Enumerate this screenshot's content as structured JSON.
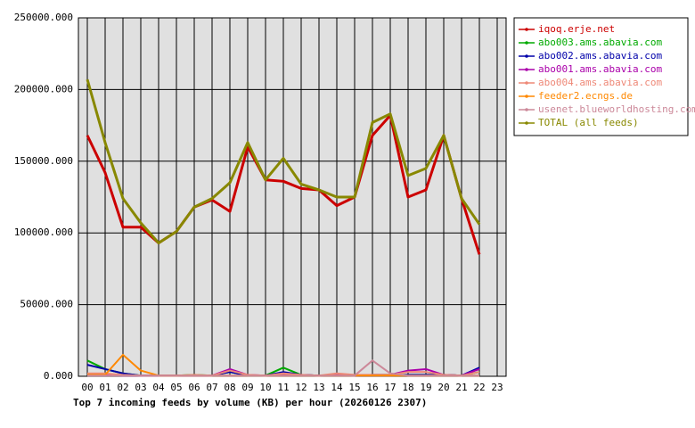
{
  "chart_data": {
    "type": "line",
    "title": "Top 7 incoming feeds by volume (KB) per hour (20260126 2307)",
    "categories": [
      "00",
      "01",
      "02",
      "03",
      "04",
      "05",
      "06",
      "07",
      "08",
      "09",
      "10",
      "11",
      "12",
      "13",
      "14",
      "15",
      "16",
      "17",
      "18",
      "19",
      "20",
      "21",
      "22",
      "23"
    ],
    "ylim": [
      0,
      250000
    ],
    "yticks": [
      {
        "value": 0,
        "label": "0.000"
      },
      {
        "value": 50000,
        "label": "50000.000"
      },
      {
        "value": 100000,
        "label": "100000.000"
      },
      {
        "value": 150000,
        "label": "150000.000"
      },
      {
        "value": 200000,
        "label": "200000.000"
      },
      {
        "value": 250000,
        "label": "250000.000"
      }
    ],
    "grid": true,
    "legend": "right",
    "series": [
      {
        "name": "iqoq.erje.net",
        "color": "#cc0000",
        "values": [
          168000,
          142000,
          104000,
          104000,
          93000,
          101000,
          118000,
          123000,
          115000,
          160000,
          137000,
          136000,
          131000,
          130000,
          119000,
          125000,
          168000,
          182000,
          125000,
          130000,
          168000,
          124000,
          85000,
          null
        ]
      },
      {
        "name": "abo003.ams.abavia.com",
        "color": "#00aa00",
        "values": [
          11000,
          5000,
          2000,
          500,
          500,
          500,
          1000,
          500,
          3000,
          500,
          500,
          6000,
          1000,
          500,
          1000,
          500,
          1000,
          1000,
          1000,
          1000,
          1000,
          500,
          3000,
          null
        ]
      },
      {
        "name": "abo002.ams.abavia.com",
        "color": "#0000aa",
        "values": [
          8000,
          5000,
          2000,
          500,
          500,
          500,
          500,
          500,
          3000,
          500,
          500,
          3000,
          1000,
          500,
          1000,
          500,
          500,
          500,
          1000,
          1000,
          1000,
          500,
          6000,
          null
        ]
      },
      {
        "name": "abo001.ams.abavia.com",
        "color": "#aa00aa",
        "values": [
          1000,
          1000,
          500,
          500,
          500,
          500,
          500,
          500,
          5000,
          1000,
          500,
          1000,
          1000,
          500,
          1000,
          500,
          1000,
          1000,
          4000,
          5000,
          1000,
          500,
          5000,
          null
        ]
      },
      {
        "name": "abo004.ams.abavia.com",
        "color": "#ee8877",
        "values": [
          2000,
          2000,
          1000,
          500,
          500,
          500,
          1000,
          500,
          4000,
          1000,
          500,
          2000,
          1000,
          500,
          2000,
          1000,
          1000,
          1000,
          3000,
          3000,
          1000,
          500,
          3000,
          null
        ]
      },
      {
        "name": "feeder2.ecngs.de",
        "color": "#ff8800",
        "values": [
          1000,
          1000,
          15000,
          4000,
          500,
          500,
          500,
          500,
          500,
          500,
          500,
          500,
          500,
          500,
          500,
          500,
          500,
          500,
          500,
          500,
          500,
          500,
          500,
          null
        ]
      },
      {
        "name": "usenet.blueworldhosting.com",
        "color": "#cc8899",
        "values": [
          500,
          500,
          500,
          500,
          500,
          500,
          500,
          500,
          500,
          500,
          500,
          500,
          500,
          500,
          500,
          500,
          11000,
          2000,
          500,
          500,
          500,
          500,
          500,
          null
        ]
      },
      {
        "name": "TOTAL (all feeds)",
        "color": "#888800",
        "values": [
          207000,
          163000,
          124000,
          107000,
          93000,
          101000,
          118000,
          124000,
          135000,
          163000,
          137000,
          152000,
          134000,
          130000,
          125000,
          125000,
          177000,
          183000,
          140000,
          145000,
          168000,
          124000,
          106000,
          null
        ]
      }
    ]
  }
}
